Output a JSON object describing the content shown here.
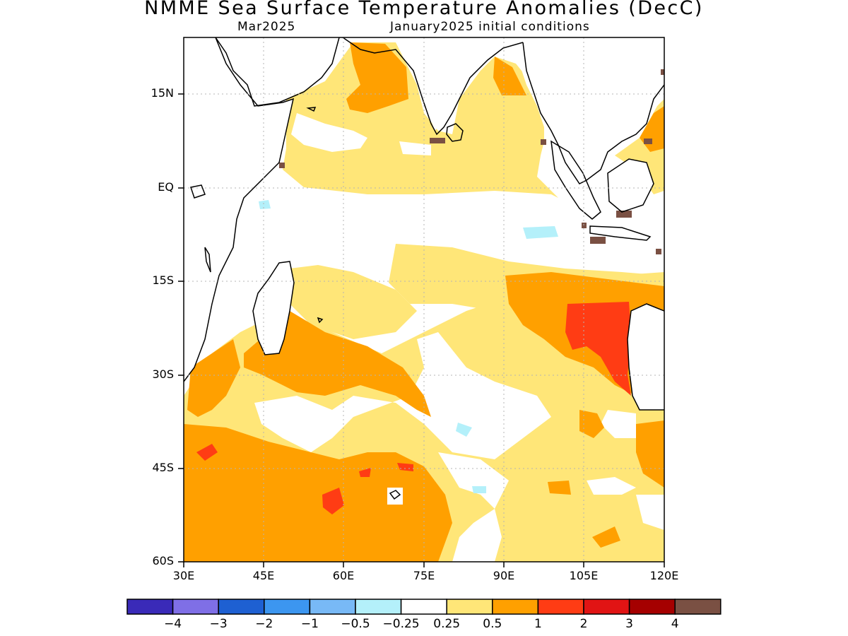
{
  "title": "NMME Sea Surface Temperature Anomalies (DecC)",
  "subtitle_left": "Mar2025",
  "subtitle_right": "January2025 initial conditions",
  "axes": {
    "lat_labels": [
      "15N",
      "EQ",
      "15S",
      "30S",
      "45S",
      "60S"
    ],
    "lon_labels": [
      "30E",
      "45E",
      "60E",
      "75E",
      "90E",
      "105E",
      "120E"
    ]
  },
  "colorbar": {
    "colors": [
      "#3a2ab8",
      "#7f6fe6",
      "#1e60d2",
      "#3c96f0",
      "#78b9f6",
      "#b4f0fa",
      "#ffffff",
      "#ffe678",
      "#ffa000",
      "#ff3c14",
      "#e11414",
      "#a50000",
      "#7a5043"
    ],
    "labels": [
      "−4",
      "−3",
      "−2",
      "−1",
      "−0.5",
      "−0.25",
      "0.25",
      "0.5",
      "1",
      "2",
      "3",
      "4"
    ]
  }
}
